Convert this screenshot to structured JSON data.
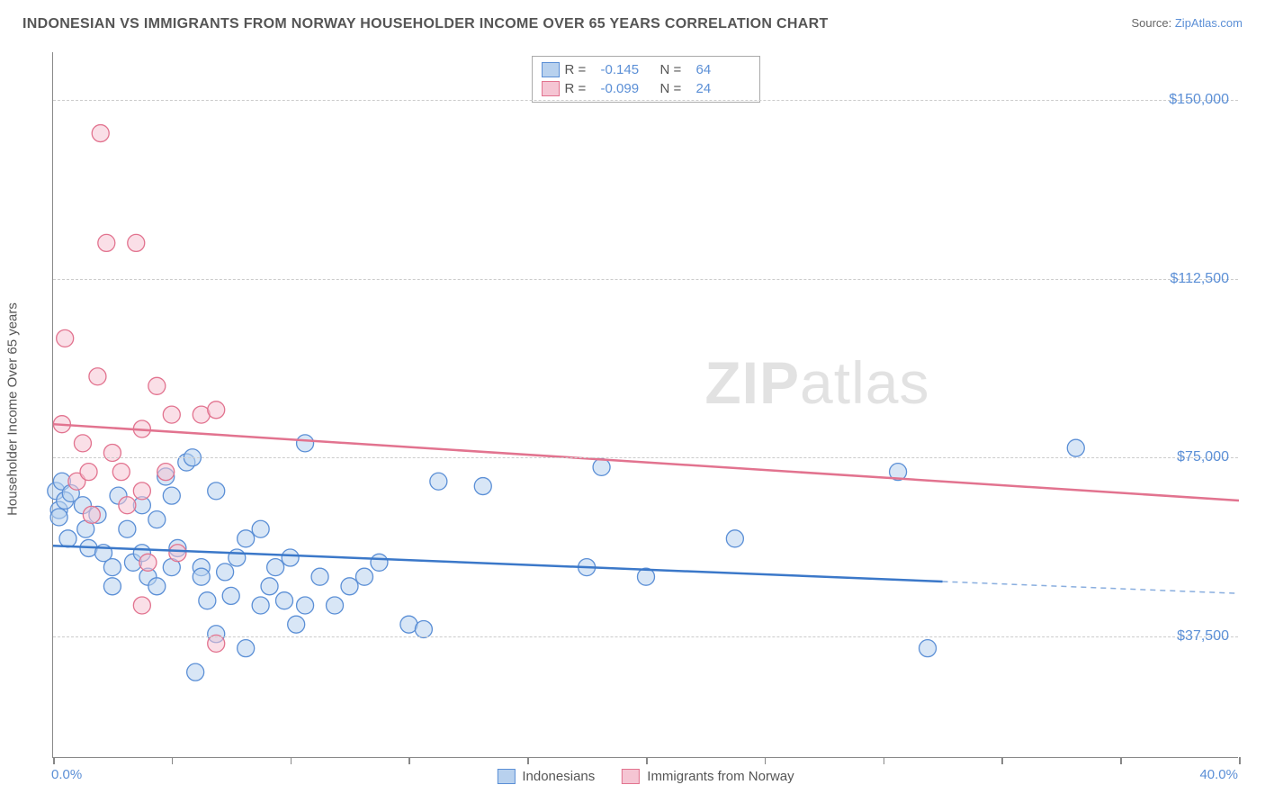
{
  "header": {
    "title": "INDONESIAN VS IMMIGRANTS FROM NORWAY HOUSEHOLDER INCOME OVER 65 YEARS CORRELATION CHART",
    "source_prefix": "Source: ",
    "source_name": "ZipAtlas.com"
  },
  "chart": {
    "type": "scatter",
    "ylabel": "Householder Income Over 65 years",
    "xlim": [
      0,
      40
    ],
    "ylim": [
      12000,
      160000
    ],
    "xmin_label": "0.0%",
    "xmax_label": "40.0%",
    "xtick_positions": [
      0,
      4,
      8,
      12,
      16,
      20,
      24,
      28,
      32,
      36,
      40
    ],
    "yticks": [
      {
        "value": 37500,
        "label": "$37,500"
      },
      {
        "value": 75000,
        "label": "$75,000"
      },
      {
        "value": 112500,
        "label": "$112,500"
      },
      {
        "value": 150000,
        "label": "$150,000"
      }
    ],
    "grid_color": "#cccccc",
    "background_color": "#ffffff",
    "watermark": "ZIPatlas",
    "series": [
      {
        "name": "Indonesians",
        "color_fill": "#b8d1ee",
        "color_stroke": "#5b8fd6",
        "marker_radius": 9.5,
        "fill_opacity": 0.55,
        "R": "-0.145",
        "N": "64",
        "trend": {
          "x1": 0,
          "y1": 56500,
          "x2": 30,
          "y2": 49000,
          "x2_dash": 40,
          "y2_dash": 46500,
          "stroke": "#3b78c9",
          "width": 2.5
        },
        "points": [
          [
            0.1,
            68000
          ],
          [
            0.2,
            64000
          ],
          [
            0.2,
            62500
          ],
          [
            0.4,
            66000
          ],
          [
            0.5,
            58000
          ],
          [
            0.3,
            70000
          ],
          [
            0.6,
            67500
          ],
          [
            1.0,
            65000
          ],
          [
            1.1,
            60000
          ],
          [
            1.2,
            56000
          ],
          [
            1.5,
            63000
          ],
          [
            1.7,
            55000
          ],
          [
            2.0,
            52000
          ],
          [
            2.0,
            48000
          ],
          [
            2.2,
            67000
          ],
          [
            2.5,
            60000
          ],
          [
            2.7,
            53000
          ],
          [
            3.0,
            65000
          ],
          [
            3.0,
            55000
          ],
          [
            3.2,
            50000
          ],
          [
            3.5,
            62000
          ],
          [
            3.5,
            48000
          ],
          [
            3.8,
            71000
          ],
          [
            4.0,
            67000
          ],
          [
            4.0,
            52000
          ],
          [
            4.2,
            56000
          ],
          [
            4.5,
            74000
          ],
          [
            4.7,
            75000
          ],
          [
            4.8,
            30000
          ],
          [
            5.0,
            52000
          ],
          [
            5.0,
            50000
          ],
          [
            5.2,
            45000
          ],
          [
            5.5,
            68000
          ],
          [
            5.5,
            38000
          ],
          [
            5.8,
            51000
          ],
          [
            6.0,
            46000
          ],
          [
            6.2,
            54000
          ],
          [
            6.5,
            58000
          ],
          [
            6.5,
            35000
          ],
          [
            7.0,
            60000
          ],
          [
            7.0,
            44000
          ],
          [
            7.3,
            48000
          ],
          [
            7.5,
            52000
          ],
          [
            7.8,
            45000
          ],
          [
            8.0,
            54000
          ],
          [
            8.2,
            40000
          ],
          [
            8.5,
            44000
          ],
          [
            8.5,
            78000
          ],
          [
            9.0,
            50000
          ],
          [
            9.5,
            44000
          ],
          [
            10.0,
            48000
          ],
          [
            10.5,
            50000
          ],
          [
            11.0,
            53000
          ],
          [
            12.0,
            40000
          ],
          [
            12.5,
            39000
          ],
          [
            13.0,
            70000
          ],
          [
            14.5,
            69000
          ],
          [
            18.0,
            52000
          ],
          [
            18.5,
            73000
          ],
          [
            20.0,
            50000
          ],
          [
            23.0,
            58000
          ],
          [
            28.5,
            72000
          ],
          [
            29.5,
            35000
          ],
          [
            34.5,
            77000
          ]
        ]
      },
      {
        "name": "Immigrants from Norway",
        "color_fill": "#f5c5d3",
        "color_stroke": "#e2738f",
        "marker_radius": 9.5,
        "fill_opacity": 0.55,
        "R": "-0.099",
        "N": "24",
        "trend": {
          "x1": 0,
          "y1": 82000,
          "x2": 40,
          "y2": 66000,
          "stroke": "#e2738f",
          "width": 2.5
        },
        "points": [
          [
            0.3,
            82000
          ],
          [
            0.4,
            100000
          ],
          [
            0.8,
            70000
          ],
          [
            1.0,
            78000
          ],
          [
            1.2,
            72000
          ],
          [
            1.3,
            63000
          ],
          [
            1.5,
            92000
          ],
          [
            1.6,
            143000
          ],
          [
            1.8,
            120000
          ],
          [
            2.0,
            76000
          ],
          [
            2.3,
            72000
          ],
          [
            2.5,
            65000
          ],
          [
            2.8,
            120000
          ],
          [
            3.0,
            81000
          ],
          [
            3.0,
            68000
          ],
          [
            3.0,
            44000
          ],
          [
            3.2,
            53000
          ],
          [
            3.5,
            90000
          ],
          [
            3.8,
            72000
          ],
          [
            4.0,
            84000
          ],
          [
            4.2,
            55000
          ],
          [
            5.0,
            84000
          ],
          [
            5.5,
            85000
          ],
          [
            5.5,
            36000
          ]
        ]
      }
    ],
    "legend_top": {
      "R_label": "R  =",
      "N_label": "N  ="
    },
    "legend_bottom": [
      {
        "label": "Indonesians",
        "fill": "#b8d1ee",
        "stroke": "#5b8fd6"
      },
      {
        "label": "Immigrants from Norway",
        "fill": "#f5c5d3",
        "stroke": "#e2738f"
      }
    ]
  }
}
